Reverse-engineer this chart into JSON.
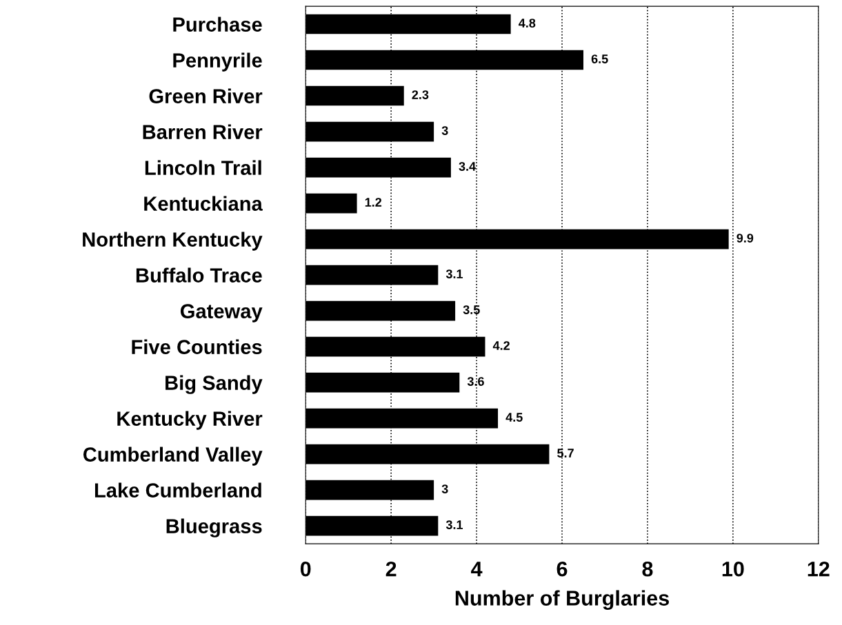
{
  "chart_data": {
    "type": "bar",
    "orientation": "horizontal",
    "xlabel": "Number of Burglaries",
    "categories": [
      "Purchase",
      "Pennyrile",
      "Green River",
      "Barren River",
      "Lincoln Trail",
      "Kentuckiana",
      "Northern Kentucky",
      "Buffalo Trace",
      "Gateway",
      "Five Counties",
      "Big Sandy",
      "Kentucky River",
      "Cumberland Valley",
      "Lake Cumberland",
      "Bluegrass"
    ],
    "values": [
      4.8,
      6.5,
      2.3,
      3,
      3.4,
      1.2,
      9.9,
      3.1,
      3.5,
      4.2,
      3.6,
      4.5,
      5.7,
      3,
      3.1
    ],
    "color": "#000000",
    "data_labels": true,
    "xlim": [
      0,
      12
    ],
    "xticks": [
      0,
      2,
      4,
      6,
      8,
      10,
      12
    ],
    "grid": "x"
  }
}
